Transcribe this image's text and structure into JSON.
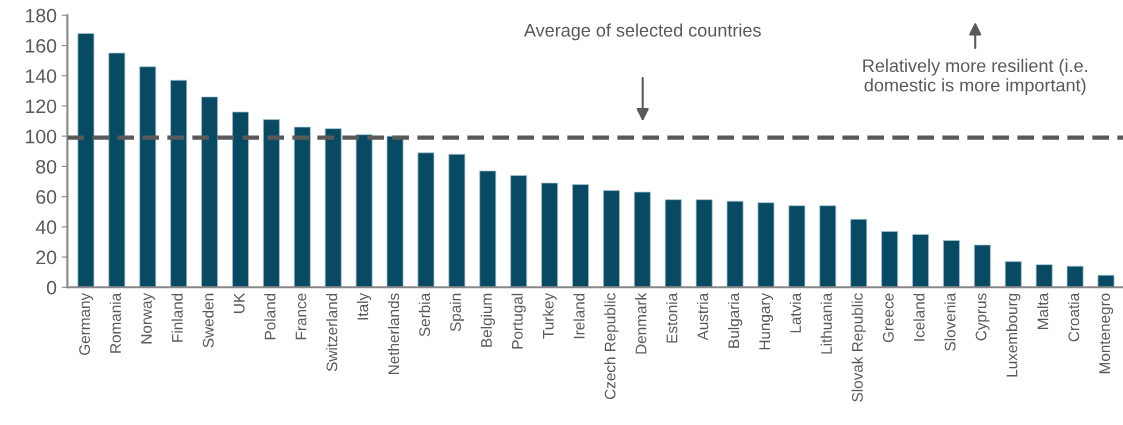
{
  "chart_data": {
    "type": "bar",
    "categories": [
      "Germany",
      "Romania",
      "Norway",
      "Finland",
      "Sweden",
      "UK",
      "Poland",
      "France",
      "Switzerland",
      "Italy",
      "Netherlands",
      "Serbia",
      "Spain",
      "Belgium",
      "Portugal",
      "Turkey",
      "Ireland",
      "Czech Republic",
      "Denmark",
      "Estonia",
      "Austria",
      "Bulgaria",
      "Hungary",
      "Latvia",
      "Lithuania",
      "Slovak Republic",
      "Greece",
      "Iceland",
      "Slovenia",
      "Cyprus",
      "Luxembourg",
      "Malta",
      "Croatia",
      "Montenegro"
    ],
    "values": [
      168,
      155,
      146,
      137,
      126,
      116,
      111,
      106,
      105,
      101,
      100,
      89,
      88,
      77,
      74,
      69,
      68,
      64,
      63,
      58,
      58,
      57,
      56,
      54,
      54,
      45,
      37,
      35,
      31,
      28,
      17,
      15,
      14,
      8
    ],
    "color": "#084a63",
    "ylim": [
      0,
      180
    ],
    "yticks": [
      0,
      20,
      40,
      60,
      80,
      100,
      120,
      140,
      160,
      180
    ],
    "grid": false,
    "ref_lines": [
      {
        "axis": "y",
        "value": 99,
        "label": null,
        "color": "#595959",
        "line_style": "dashed"
      }
    ],
    "annotations": [
      "Average of selected countries",
      "Relatively more resilient (i.e. domestic is more important)"
    ]
  }
}
